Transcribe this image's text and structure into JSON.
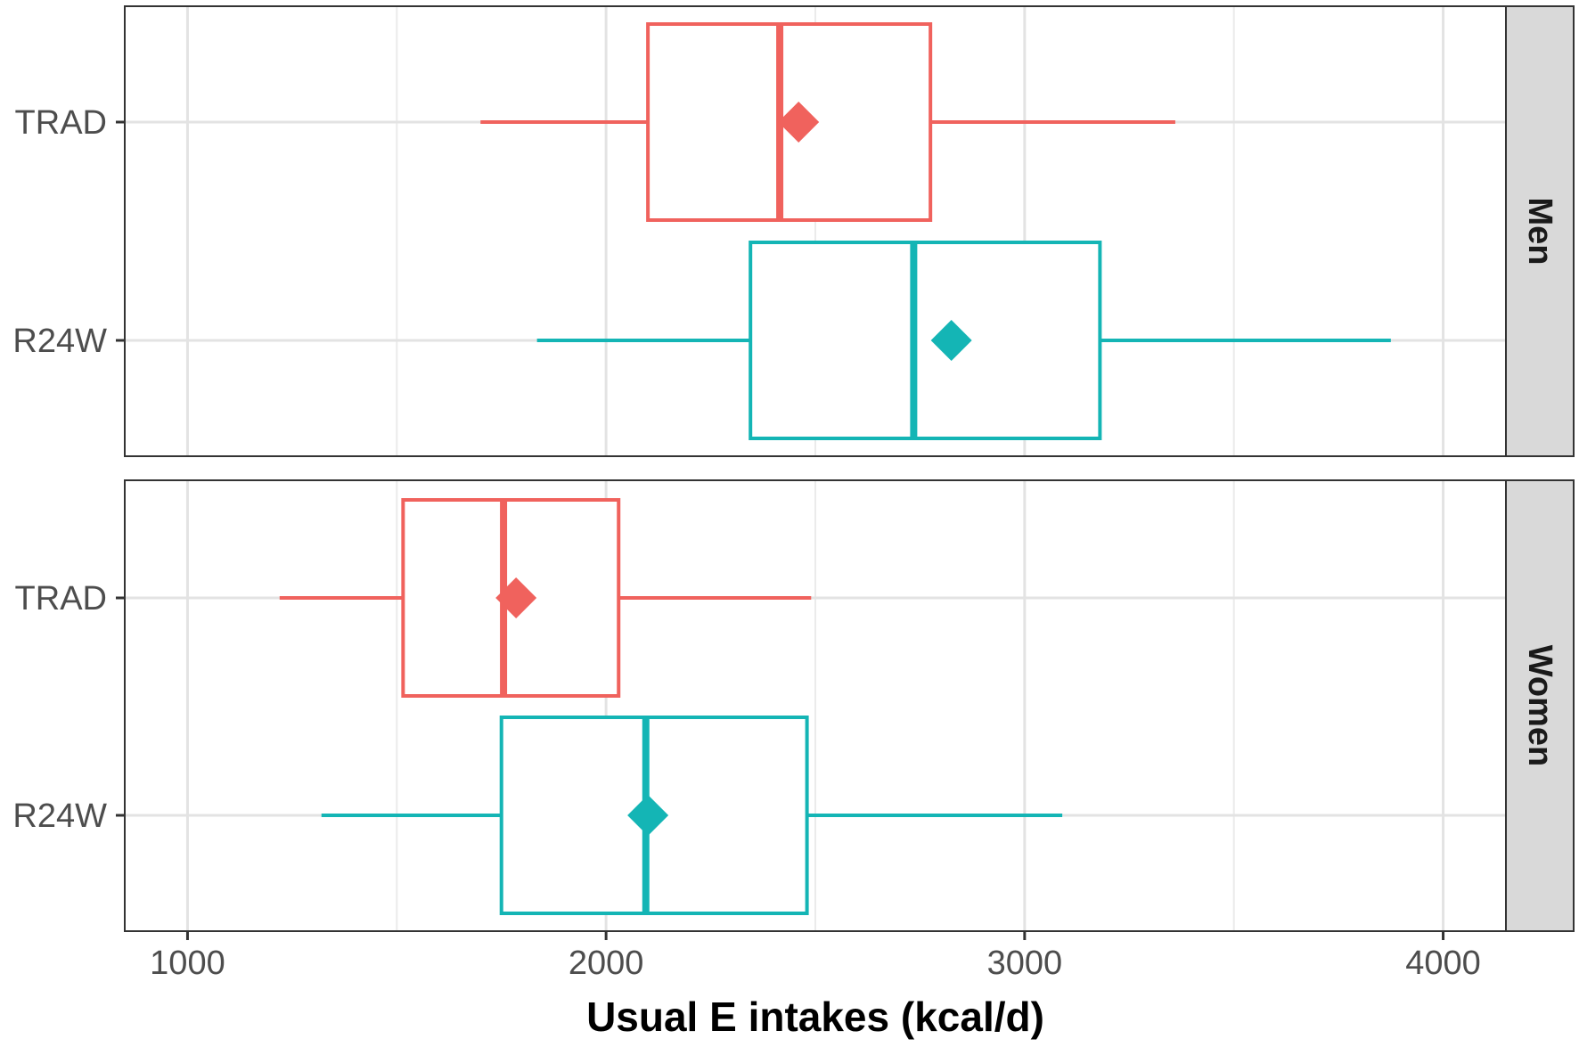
{
  "chart_data": {
    "type": "boxplot",
    "orientation": "horizontal",
    "xlabel": "Usual E intakes (kcal/d)",
    "xlim": [
      850,
      4150
    ],
    "xticks": [
      1000,
      2000,
      3000,
      4000
    ],
    "xtick_labels": [
      "1000",
      "2000",
      "3000",
      "4000"
    ],
    "grid": true,
    "categories": [
      "TRAD",
      "R24W"
    ],
    "colors": {
      "TRAD": "#F0625D",
      "R24W": "#14B5B5"
    },
    "facets": [
      {
        "name": "Men",
        "boxes": [
          {
            "category": "TRAD",
            "whisker_low": 1700,
            "q1": 2100,
            "median": 2415,
            "q3": 2775,
            "whisker_high": 3360,
            "mean": 2460
          },
          {
            "category": "R24W",
            "whisker_low": 1835,
            "q1": 2345,
            "median": 2735,
            "q3": 3180,
            "whisker_high": 3875,
            "mean": 2825
          }
        ]
      },
      {
        "name": "Women",
        "boxes": [
          {
            "category": "TRAD",
            "whisker_low": 1220,
            "q1": 1515,
            "median": 1755,
            "q3": 2030,
            "whisker_high": 2490,
            "mean": 1785
          },
          {
            "category": "R24W",
            "whisker_low": 1320,
            "q1": 1750,
            "median": 2095,
            "q3": 2480,
            "whisker_high": 3090,
            "mean": 2100
          }
        ]
      }
    ]
  }
}
